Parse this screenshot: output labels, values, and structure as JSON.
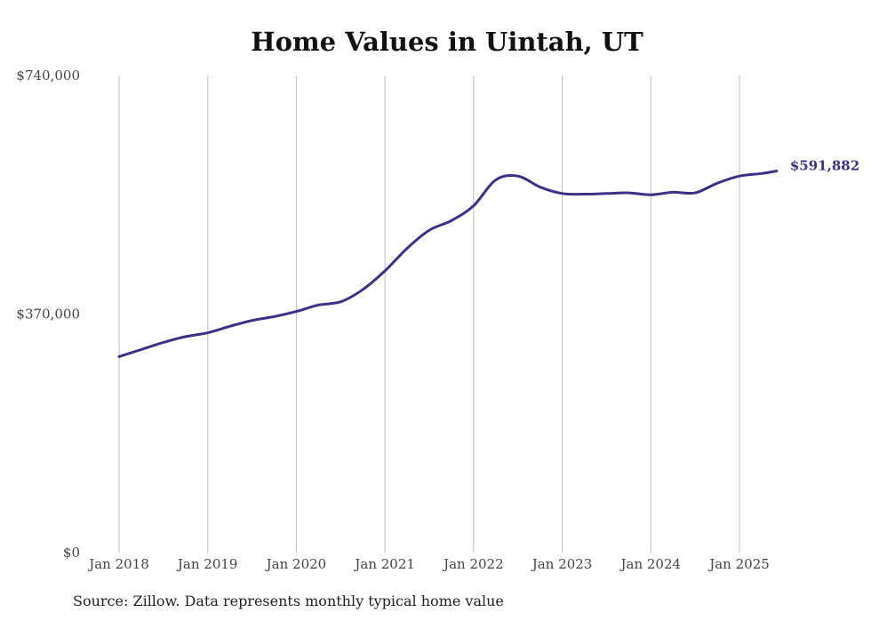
{
  "chart_data": {
    "type": "line",
    "title": "Home Values in Uintah, UT",
    "xlabel": "",
    "ylabel": "",
    "ylim": [
      0,
      740000
    ],
    "y_ticks": [
      {
        "value": 0,
        "label": "$0"
      },
      {
        "value": 370000,
        "label": "$370,000"
      },
      {
        "value": 740000,
        "label": "$740,000"
      }
    ],
    "x_ticks": [
      {
        "value": 2018.0,
        "label": "Jan 2018"
      },
      {
        "value": 2019.0,
        "label": "Jan 2019"
      },
      {
        "value": 2020.0,
        "label": "Jan 2020"
      },
      {
        "value": 2021.0,
        "label": "Jan 2021"
      },
      {
        "value": 2022.0,
        "label": "Jan 2022"
      },
      {
        "value": 2023.0,
        "label": "Jan 2023"
      },
      {
        "value": 2024.0,
        "label": "Jan 2024"
      },
      {
        "value": 2025.0,
        "label": "Jan 2025"
      }
    ],
    "grid": {
      "vertical": true,
      "horizontal": false
    },
    "line_color": "#3b3288",
    "end_label": "$591,882",
    "series": [
      {
        "x": [
          2018.0,
          2018.25,
          2018.5,
          2018.75,
          2019.0,
          2019.25,
          2019.5,
          2019.75,
          2020.0,
          2020.25,
          2020.5,
          2020.75,
          2021.0,
          2021.25,
          2021.5,
          2021.75,
          2022.0,
          2022.25,
          2022.5,
          2022.75,
          2023.0,
          2023.25,
          2023.5,
          2023.75,
          2024.0,
          2024.25,
          2024.5,
          2024.75,
          2025.0,
          2025.25,
          2025.42
        ],
        "y": [
          304000,
          315000,
          326000,
          335000,
          341000,
          351000,
          360000,
          366000,
          374000,
          384000,
          389000,
          408000,
          437000,
          472000,
          500000,
          515000,
          538000,
          578000,
          584000,
          567000,
          557000,
          556000,
          557000,
          558000,
          555000,
          559000,
          558000,
          573000,
          584000,
          588000,
          591882
        ]
      }
    ]
  },
  "source": "Source: Zillow. Data represents monthly typical home value"
}
